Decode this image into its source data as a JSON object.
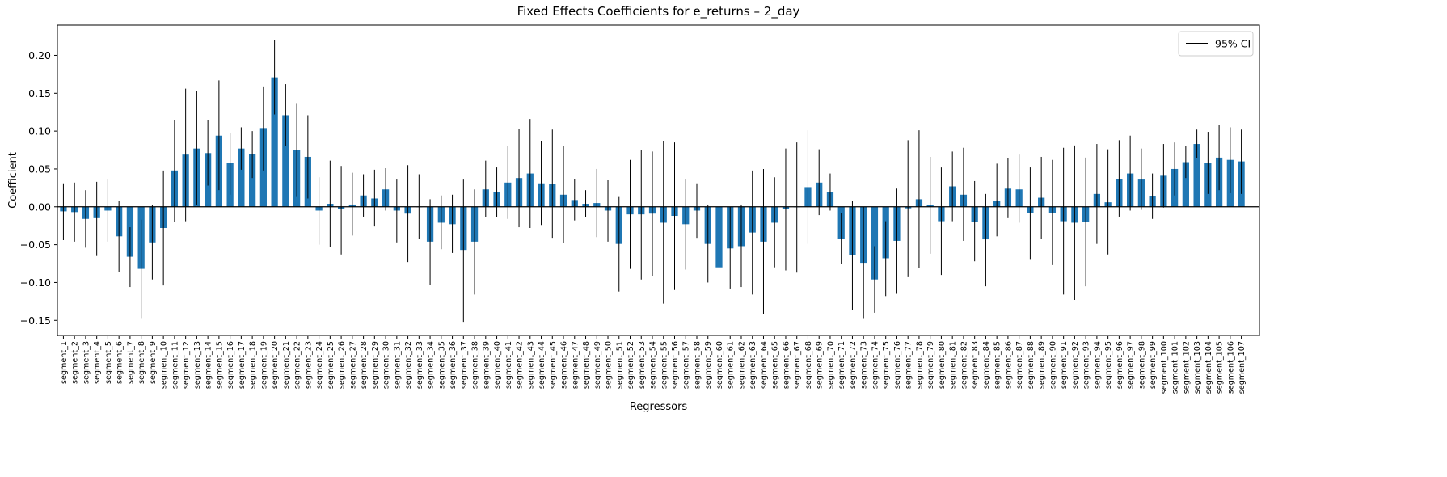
{
  "chart_data": {
    "type": "bar",
    "title": "Fixed Effects Coefficients for e_returns – 2_day",
    "xlabel": "Regressors",
    "ylabel": "Coefficient",
    "ylim": [
      -0.17,
      0.24
    ],
    "yticks": [
      -0.15,
      -0.1,
      -0.05,
      0.0,
      0.05,
      0.1,
      0.15,
      0.2
    ],
    "ytick_labels": [
      "−0.15",
      "−0.10",
      "−0.05",
      "0.00",
      "0.05",
      "0.10",
      "0.15",
      "0.20"
    ],
    "bar_color": "#1f77b4",
    "errorbar_color": "#000000",
    "zero_line": true,
    "grid": false,
    "legend": {
      "placement": "top-right",
      "entries": [
        "95% CI"
      ]
    },
    "categories": [
      "segment_1",
      "segment_2",
      "segment_3",
      "segment_4",
      "segment_5",
      "segment_6",
      "segment_7",
      "segment_8",
      "segment_9",
      "segment_10",
      "segment_11",
      "segment_12",
      "segment_13",
      "segment_14",
      "segment_15",
      "segment_16",
      "segment_17",
      "segment_18",
      "segment_19",
      "segment_20",
      "segment_21",
      "segment_22",
      "segment_23",
      "segment_24",
      "segment_25",
      "segment_26",
      "segment_27",
      "segment_28",
      "segment_29",
      "segment_30",
      "segment_31",
      "segment_32",
      "segment_33",
      "segment_34",
      "segment_35",
      "segment_36",
      "segment_37",
      "segment_38",
      "segment_39",
      "segment_40",
      "segment_41",
      "segment_42",
      "segment_43",
      "segment_44",
      "segment_45",
      "segment_46",
      "segment_47",
      "segment_48",
      "segment_49",
      "segment_50",
      "segment_51",
      "segment_52",
      "segment_53",
      "segment_54",
      "segment_55",
      "segment_56",
      "segment_57",
      "segment_58",
      "segment_59",
      "segment_60",
      "segment_61",
      "segment_62",
      "segment_63",
      "segment_64",
      "segment_65",
      "segment_66",
      "segment_67",
      "segment_68",
      "segment_69",
      "segment_70",
      "segment_71",
      "segment_72",
      "segment_73",
      "segment_74",
      "segment_75",
      "segment_76",
      "segment_77",
      "segment_78",
      "segment_79",
      "segment_80",
      "segment_81",
      "segment_82",
      "segment_83",
      "segment_84",
      "segment_85",
      "segment_86",
      "segment_87",
      "segment_88",
      "segment_89",
      "segment_90",
      "segment_91",
      "segment_92",
      "segment_93",
      "segment_94",
      "segment_95",
      "segment_96",
      "segment_97",
      "segment_98",
      "segment_99",
      "segment_100",
      "segment_101",
      "segment_102",
      "segment_103",
      "segment_104",
      "segment_105",
      "segment_106",
      "segment_107"
    ],
    "values": [
      -0.006,
      -0.007,
      -0.016,
      -0.015,
      -0.005,
      -0.039,
      -0.066,
      -0.082,
      -0.047,
      -0.028,
      0.048,
      0.069,
      0.077,
      0.071,
      0.094,
      0.058,
      0.077,
      0.07,
      0.104,
      0.171,
      0.121,
      0.075,
      0.066,
      -0.005,
      0.004,
      -0.003,
      0.003,
      0.015,
      0.011,
      0.023,
      -0.005,
      -0.009,
      0.0,
      -0.046,
      -0.021,
      -0.023,
      -0.057,
      -0.046,
      0.023,
      0.019,
      0.032,
      0.038,
      0.044,
      0.031,
      0.03,
      0.016,
      0.009,
      0.004,
      0.005,
      -0.005,
      -0.049,
      -0.01,
      -0.01,
      -0.009,
      -0.021,
      -0.012,
      -0.023,
      -0.005,
      -0.049,
      -0.08,
      -0.055,
      -0.052,
      -0.034,
      -0.046,
      -0.021,
      -0.003,
      0.0,
      0.026,
      0.032,
      0.02,
      -0.042,
      -0.064,
      -0.074,
      -0.096,
      -0.068,
      -0.045,
      -0.002,
      0.01,
      0.002,
      -0.019,
      0.027,
      0.016,
      -0.02,
      -0.043,
      0.008,
      0.024,
      0.023,
      -0.008,
      0.012,
      -0.008,
      -0.019,
      -0.021,
      -0.02,
      0.017,
      0.006,
      0.037,
      0.044,
      0.036,
      0.014,
      0.041,
      0.05,
      0.059,
      0.083,
      0.058,
      0.065,
      0.062,
      0.06
    ],
    "ci_lower": [
      -0.044,
      -0.046,
      -0.054,
      -0.065,
      -0.046,
      -0.086,
      -0.106,
      -0.147,
      -0.096,
      -0.104,
      -0.02,
      -0.019,
      0.002,
      0.028,
      0.022,
      0.016,
      0.049,
      0.038,
      0.048,
      0.122,
      0.08,
      0.013,
      0.011,
      -0.05,
      -0.053,
      -0.063,
      -0.038,
      -0.013,
      -0.026,
      -0.005,
      -0.047,
      -0.073,
      -0.042,
      -0.103,
      -0.056,
      -0.061,
      -0.152,
      -0.116,
      -0.014,
      -0.014,
      -0.016,
      -0.027,
      -0.028,
      -0.024,
      -0.041,
      -0.048,
      -0.018,
      -0.014,
      -0.04,
      -0.046,
      -0.112,
      -0.082,
      -0.096,
      -0.092,
      -0.128,
      -0.11,
      -0.083,
      -0.041,
      -0.1,
      -0.102,
      -0.108,
      -0.106,
      -0.116,
      -0.142,
      -0.08,
      -0.084,
      -0.087,
      -0.049,
      -0.011,
      -0.005,
      -0.076,
      -0.136,
      -0.147,
      -0.14,
      -0.118,
      -0.115,
      -0.093,
      -0.081,
      -0.062,
      -0.09,
      -0.019,
      -0.045,
      -0.072,
      -0.105,
      -0.039,
      -0.015,
      -0.021,
      -0.069,
      -0.042,
      -0.077,
      -0.116,
      -0.123,
      -0.105,
      -0.049,
      -0.063,
      -0.013,
      -0.005,
      -0.004,
      -0.016,
      -0.001,
      0.015,
      0.038,
      0.064,
      0.017,
      0.022,
      0.018,
      0.017
    ],
    "ci_upper": [
      0.031,
      0.032,
      0.022,
      0.033,
      0.036,
      0.008,
      -0.027,
      -0.017,
      0.002,
      0.048,
      0.115,
      0.156,
      0.153,
      0.114,
      0.167,
      0.098,
      0.105,
      0.1,
      0.159,
      0.22,
      0.162,
      0.136,
      0.121,
      0.039,
      0.061,
      0.054,
      0.045,
      0.043,
      0.049,
      0.051,
      0.036,
      0.055,
      0.043,
      0.01,
      0.015,
      0.016,
      0.036,
      0.023,
      0.061,
      0.052,
      0.08,
      0.103,
      0.116,
      0.087,
      0.102,
      0.08,
      0.037,
      0.022,
      0.05,
      0.035,
      0.013,
      0.062,
      0.075,
      0.073,
      0.087,
      0.085,
      0.036,
      0.031,
      0.003,
      -0.058,
      0.0,
      0.003,
      0.048,
      0.05,
      0.039,
      0.077,
      0.085,
      0.101,
      0.076,
      0.044,
      -0.008,
      0.008,
      0.0,
      -0.052,
      -0.019,
      0.024,
      0.088,
      0.101,
      0.066,
      0.052,
      0.073,
      0.078,
      0.034,
      0.017,
      0.057,
      0.064,
      0.069,
      0.052,
      0.066,
      0.062,
      0.078,
      0.081,
      0.065,
      0.083,
      0.076,
      0.088,
      0.094,
      0.077,
      0.044,
      0.083,
      0.085,
      0.08,
      0.102,
      0.099,
      0.108,
      0.105,
      0.102
    ]
  }
}
